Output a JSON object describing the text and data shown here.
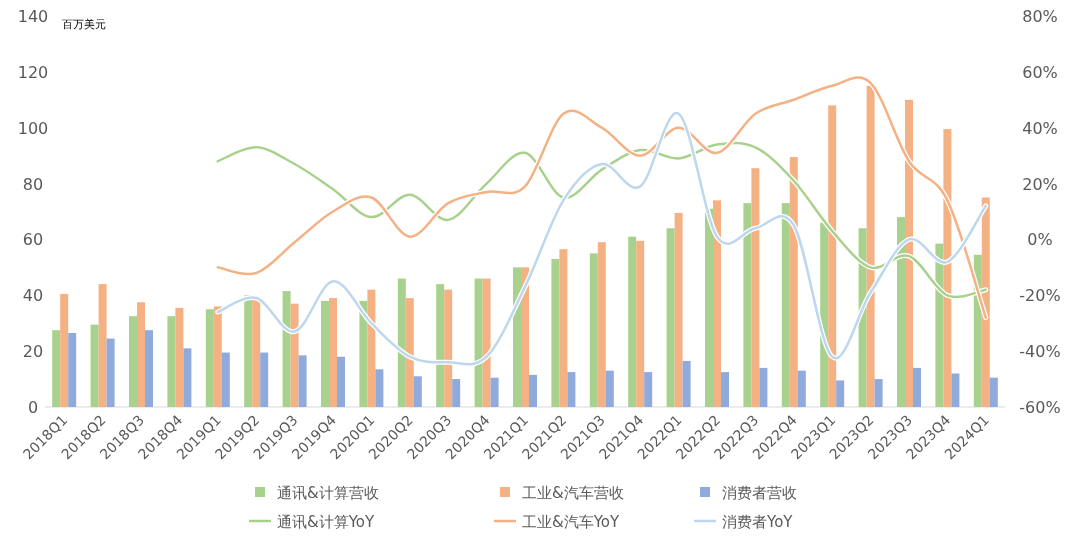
{
  "chart_data": {
    "type": "bar",
    "ylabel": "百万美元",
    "categories": [
      "2018Q1",
      "2018Q2",
      "2018Q3",
      "2018Q4",
      "2019Q1",
      "2019Q2",
      "2019Q3",
      "2019Q4",
      "2020Q1",
      "2020Q2",
      "2020Q3",
      "2020Q4",
      "2021Q1",
      "2021Q2",
      "2021Q3",
      "2021Q4",
      "2022Q1",
      "2022Q2",
      "2022Q3",
      "2022Q4",
      "2023Q1",
      "2023Q2",
      "2023Q3",
      "2023Q4",
      "2024Q1"
    ],
    "series": [
      {
        "name": "通讯&计算营收",
        "color": "#a9d18e",
        "values": [
          27.5,
          29.5,
          32.5,
          32.5,
          35,
          40,
          41.5,
          38,
          38,
          46,
          44,
          46,
          50,
          53,
          55,
          61,
          64,
          71,
          73,
          73,
          66,
          64,
          68,
          58.5,
          54.5
        ]
      },
      {
        "name": "工业&汽车营收",
        "color": "#f4b183",
        "values": [
          40.5,
          44,
          37.5,
          35.5,
          36,
          39,
          37,
          39,
          42,
          39,
          42,
          46,
          50,
          56.5,
          59,
          59.5,
          69.5,
          74,
          85.5,
          89.5,
          108,
          115,
          110,
          99.5,
          75
        ]
      },
      {
        "name": "消费者营收",
        "color": "#8faadc",
        "values": [
          26.5,
          24.5,
          27.5,
          21,
          19.5,
          19.5,
          18.5,
          18,
          13.5,
          11,
          10,
          10.5,
          11.5,
          12.5,
          13,
          12.5,
          16.5,
          12.5,
          14,
          13,
          9.5,
          10,
          14,
          12,
          10.5
        ]
      },
      {
        "name": "通讯&计算YoY",
        "type": "line",
        "axis": "y2",
        "color": "#a9d18e",
        "values": [
          null,
          null,
          null,
          null,
          28,
          33,
          27,
          18,
          8,
          16,
          7,
          20,
          31,
          15,
          25,
          32,
          29,
          34,
          33,
          21,
          3,
          -10,
          -6,
          -20,
          -18
        ]
      },
      {
        "name": "工业&汽车YoY",
        "type": "line",
        "axis": "y2",
        "color": "#f4b183",
        "values": [
          null,
          null,
          null,
          null,
          -10,
          -12,
          -1,
          10,
          15,
          1,
          13,
          17,
          19,
          45,
          40,
          30,
          40,
          31,
          45,
          50,
          55,
          56,
          28,
          14,
          -28
        ]
      },
      {
        "name": "消费者YoY",
        "type": "line",
        "axis": "y2",
        "color": "#bdd7ee",
        "values": [
          null,
          null,
          null,
          null,
          -26,
          -21,
          -33,
          -15,
          -30,
          -42,
          -44,
          -42,
          -17,
          14,
          27,
          19,
          45,
          1,
          4,
          5,
          -42,
          -19,
          0,
          -8,
          12
        ]
      }
    ],
    "ylim": [
      0,
      140
    ],
    "yticks": [
      0,
      20,
      40,
      60,
      80,
      100,
      120,
      140
    ],
    "y2lim": [
      -60,
      80
    ],
    "y2ticks": [
      {
        "value": -60,
        "label": "-60%"
      },
      {
        "value": -40,
        "label": "-40%"
      },
      {
        "value": -20,
        "label": "-20%"
      },
      {
        "value": 0,
        "label": "0%"
      },
      {
        "value": 20,
        "label": "20%"
      },
      {
        "value": 40,
        "label": "40%"
      },
      {
        "value": 60,
        "label": "60%"
      },
      {
        "value": 80,
        "label": "80%"
      }
    ],
    "legend": "bottom",
    "grid": false
  }
}
